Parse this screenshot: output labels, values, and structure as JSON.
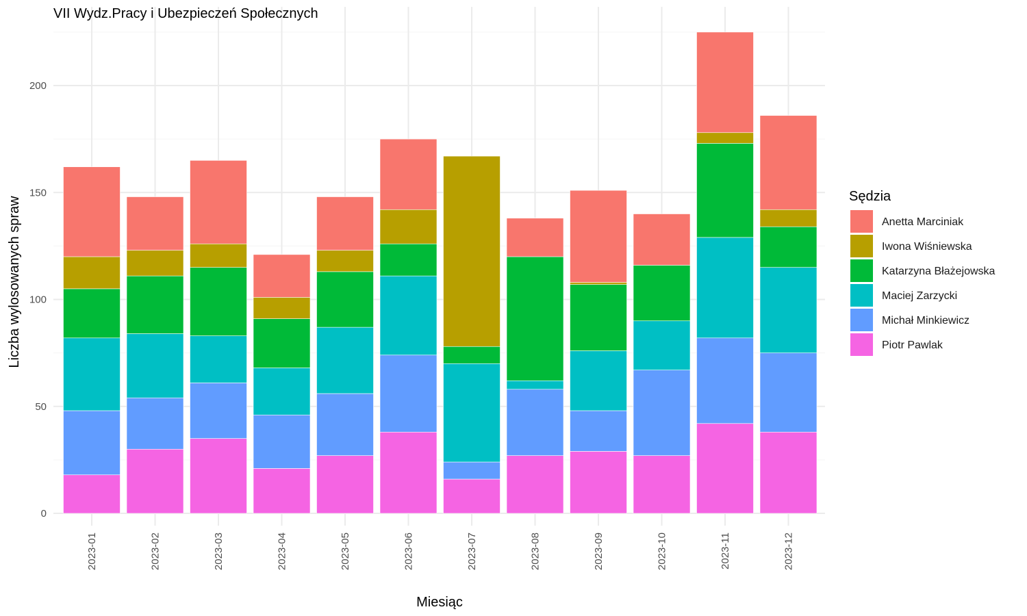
{
  "chart_data": {
    "type": "bar",
    "stacked": true,
    "title": "VII Wydz.Pracy i Ubezpieczeń Społecznych",
    "xlabel": "Miesiąc",
    "ylabel": "Liczba wylosowanych spraw",
    "ylim": [
      0,
      232
    ],
    "yticks": [
      0,
      50,
      100,
      150,
      200
    ],
    "ytick_labels": [
      "0",
      "50",
      "100",
      "150",
      "200"
    ],
    "grid": true,
    "legend_title": "Sędzia",
    "legend_position": "right",
    "categories": [
      "2023-01",
      "2023-02",
      "2023-03",
      "2023-04",
      "2023-05",
      "2023-06",
      "2023-07",
      "2023-08",
      "2023-09",
      "2023-10",
      "2023-11",
      "2023-12"
    ],
    "series": [
      {
        "name": "Piotr Pawlak",
        "color": "#F564E3",
        "values": [
          18,
          30,
          35,
          21,
          27,
          38,
          16,
          27,
          29,
          27,
          42,
          38
        ]
      },
      {
        "name": "Michał Minkiewicz",
        "color": "#619CFF",
        "values": [
          30,
          24,
          26,
          25,
          29,
          36,
          8,
          31,
          19,
          40,
          40,
          37
        ]
      },
      {
        "name": "Maciej Zarzycki",
        "color": "#00BFC4",
        "values": [
          34,
          30,
          22,
          22,
          31,
          37,
          46,
          4,
          28,
          23,
          47,
          40
        ]
      },
      {
        "name": "Katarzyna Błażejowska",
        "color": "#00BA38",
        "values": [
          23,
          27,
          32,
          23,
          26,
          15,
          8,
          58,
          31,
          26,
          44,
          19
        ]
      },
      {
        "name": "Iwona Wiśniewska",
        "color": "#B79F00",
        "values": [
          15,
          12,
          11,
          10,
          10,
          16,
          89,
          0,
          1,
          0,
          5,
          8
        ]
      },
      {
        "name": "Anetta Marciniak",
        "color": "#F8766D",
        "values": [
          42,
          25,
          39,
          20,
          25,
          33,
          0,
          18,
          43,
          24,
          47,
          44
        ]
      }
    ],
    "legend_order": [
      "Anetta Marciniak",
      "Iwona Wiśniewska",
      "Katarzyna Błażejowska",
      "Maciej Zarzycki",
      "Michał Minkiewicz",
      "Piotr Pawlak"
    ]
  }
}
